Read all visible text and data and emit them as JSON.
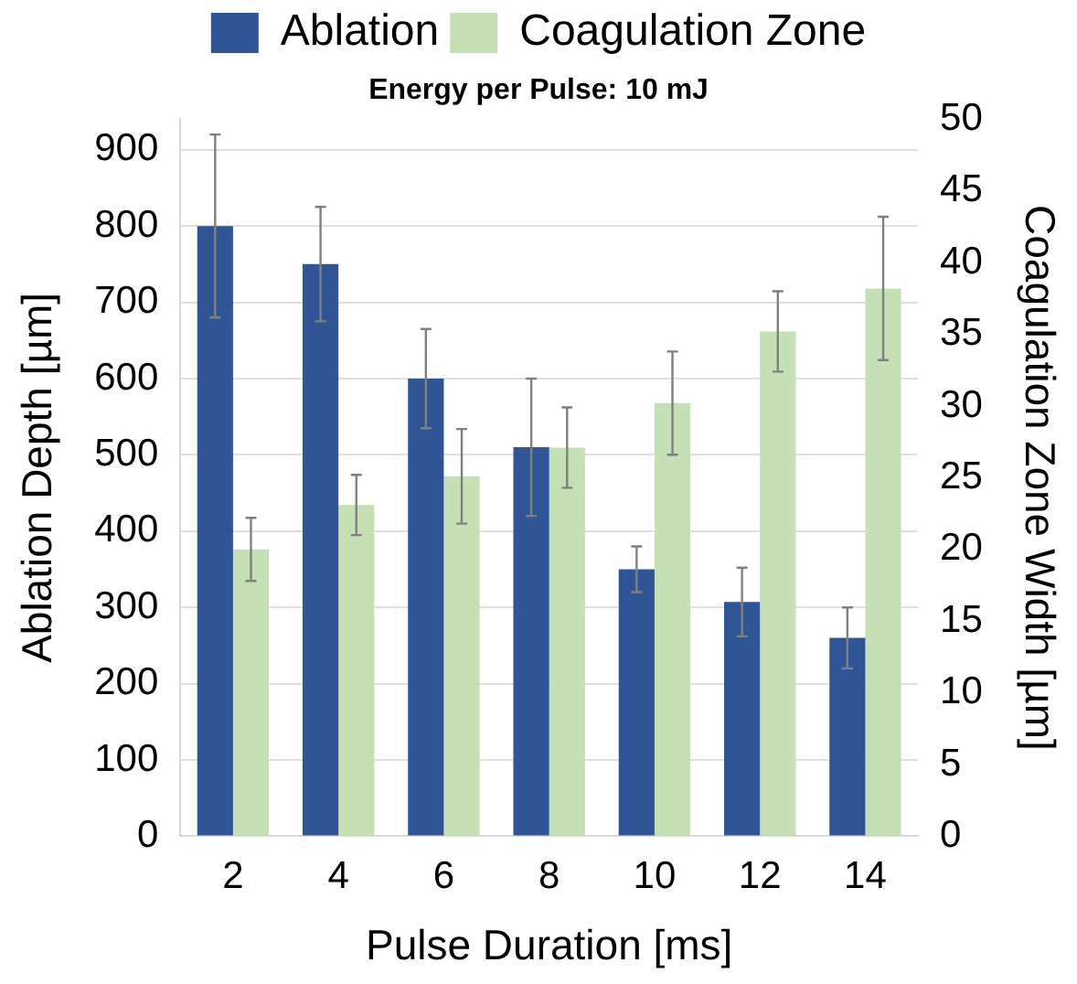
{
  "chart_data": {
    "type": "bar",
    "title": "Energy per Pulse: 10 mJ",
    "xlabel": "Pulse Duration [ms]",
    "ylabel": "Ablation Depth [µm]",
    "y2label": "Coagulation Zone Width [µm]",
    "categories": [
      "2",
      "4",
      "6",
      "8",
      "10",
      "12",
      "14"
    ],
    "series": [
      {
        "name": "Ablation",
        "color": "#2f5597",
        "values": [
          800,
          750,
          600,
          510,
          350,
          307,
          260
        ],
        "errors": [
          120,
          75,
          65,
          90,
          30,
          45,
          40
        ]
      },
      {
        "name": "Coagulation Zone",
        "color": "#c5e0b4",
        "axis": "y2",
        "values": [
          20,
          23.1,
          25.1,
          27.1,
          30.2,
          35.2,
          38.2
        ],
        "errors": [
          2.2,
          2.1,
          3.3,
          2.8,
          3.6,
          2.8,
          5
        ]
      }
    ],
    "ylim": [
      0,
      940
    ],
    "yticks": [
      0,
      100,
      200,
      300,
      400,
      500,
      600,
      700,
      800,
      900
    ],
    "y2lim": [
      0,
      50
    ],
    "y2ticks": [
      0,
      5,
      10,
      15,
      20,
      25,
      30,
      35,
      40,
      45,
      50
    ],
    "grid": "y",
    "legend": "top"
  }
}
